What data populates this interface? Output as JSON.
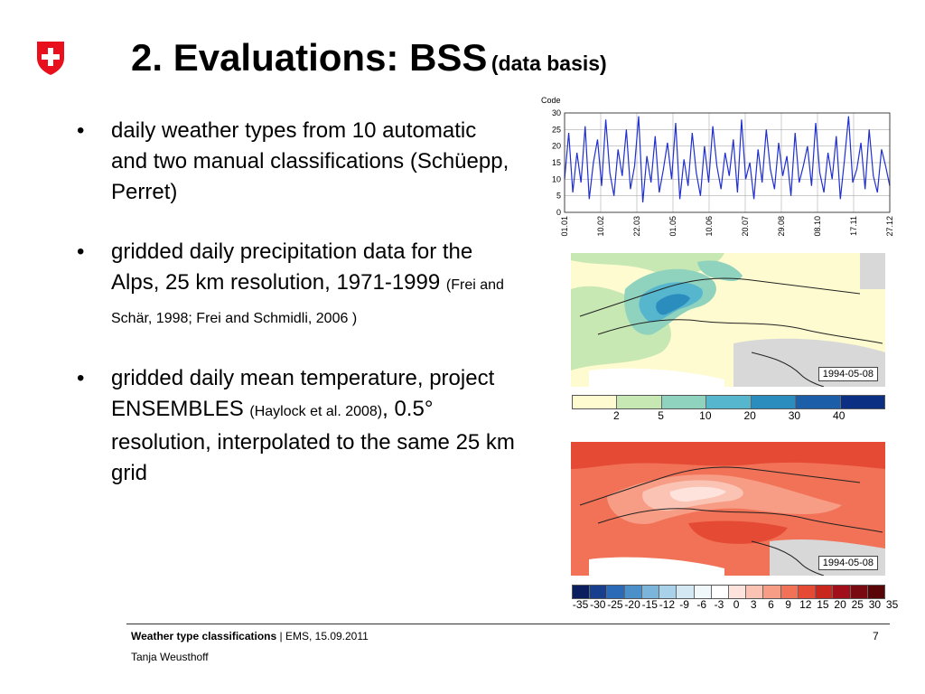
{
  "title": {
    "main": "2. Evaluations: BSS",
    "sub": "(data basis)"
  },
  "bullets": [
    {
      "text": "daily weather types from 10 automatic and two manual classifications (Schüepp, Perret)",
      "small": ""
    },
    {
      "text": "gridded daily precipitation data for the Alps, 25 km resolution, 1971-1999 ",
      "small": "(Frei and Schär, 1998; Frei and Schmidli, 2006 )"
    },
    {
      "text_a": "gridded daily mean temperature, project ENSEMBLES ",
      "small": "(Haylock et al. 2008)",
      "text_b": ", 0.5° resolution, interpolated to the same 25 km grid"
    }
  ],
  "chart_data": {
    "type": "line",
    "ylabel": "Code",
    "ylim": [
      0,
      30
    ],
    "yticks": [
      "0",
      "5",
      "10",
      "15",
      "20",
      "25",
      "30"
    ],
    "xticks": [
      "01.01",
      "10.02",
      "22.03",
      "01.05",
      "10.06",
      "20.07",
      "29.08",
      "08.10",
      "17.11",
      "27.12"
    ],
    "series": [
      {
        "values": [
          10,
          24,
          6,
          18,
          9,
          26,
          4,
          15,
          22,
          8,
          28,
          12,
          5,
          19,
          11,
          25,
          7,
          14,
          29,
          3,
          17,
          9,
          23,
          6,
          13,
          21,
          10,
          27,
          4,
          16,
          8,
          24,
          12,
          5,
          20,
          9,
          26,
          14,
          7,
          18,
          11,
          22,
          6,
          28,
          10,
          15,
          4,
          19,
          9,
          25,
          13,
          7,
          21,
          11,
          17,
          5,
          24,
          9,
          14,
          20,
          8,
          27,
          12,
          6,
          18,
          10,
          23,
          4,
          16,
          29,
          9,
          13,
          21,
          7,
          25,
          11,
          6,
          19,
          14,
          8
        ]
      }
    ]
  },
  "map1": {
    "date": "1994-05-08",
    "colorbar_ticks": [
      "2",
      "5",
      "10",
      "20",
      "30",
      "40"
    ]
  },
  "map2": {
    "date": "1994-05-08",
    "colorbar_ticks": [
      "-35",
      "-30",
      "-25",
      "-20",
      "-15",
      "-12",
      "-9",
      "-6",
      "-3",
      "0",
      "3",
      "6",
      "9",
      "12",
      "15",
      "20",
      "25",
      "30",
      "35"
    ]
  },
  "colors": {
    "precip": [
      "#fdfbcf",
      "#c8e8b3",
      "#8fd2bd",
      "#56b6ce",
      "#2b8cbe",
      "#1d5ea8",
      "#0b2f82"
    ],
    "temp": [
      "#0b1f5e",
      "#173f8e",
      "#2a6ab6",
      "#4b90c9",
      "#7bb5dc",
      "#a9d1ea",
      "#d3e8f3",
      "#f1f8fb",
      "#ffffff",
      "#fde3dc",
      "#fbc3b3",
      "#f79c85",
      "#f27257",
      "#e54a34",
      "#c9261d",
      "#a1101a",
      "#7a0a12",
      "#5a0508"
    ],
    "swiss_red": "#e8101c",
    "line": "#1f2fd0"
  },
  "footer": {
    "bold": "Weather type classifications",
    "rest": " | EMS, 15.09.2011",
    "page": "7",
    "author": "Tanja Weusthoff"
  }
}
